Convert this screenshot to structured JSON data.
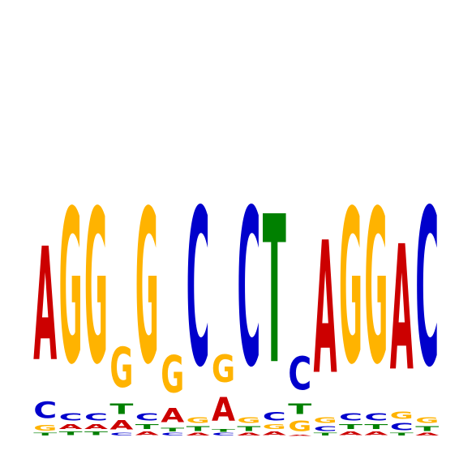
{
  "chart_data": {
    "type": "sequence-logo",
    "alphabet": [
      "A",
      "C",
      "G",
      "T"
    ],
    "colors": {
      "A": "#cc0000",
      "C": "#0000cc",
      "G": "#ffb300",
      "T": "#008000"
    },
    "ylim": [
      0,
      2
    ],
    "positions": [
      {
        "A": 0.96,
        "C": 0.14,
        "G": 0.05,
        "T": 0.02
      },
      {
        "A": 0.04,
        "C": 0.06,
        "G": 1.3,
        "T": 0.03
      },
      {
        "A": 0.04,
        "C": 0.06,
        "G": 1.3,
        "T": 0.03
      },
      {
        "A": 0.08,
        "C": 0.02,
        "G": 0.34,
        "T": 0.09
      },
      {
        "A": 0.03,
        "C": 0.06,
        "G": 1.3,
        "T": 0.04
      },
      {
        "A": 0.12,
        "C": 0.02,
        "G": 0.31,
        "T": 0.03
      },
      {
        "A": 0.02,
        "C": 1.33,
        "G": 0.05,
        "T": 0.04
      },
      {
        "A": 0.2,
        "C": 0.02,
        "G": 0.23,
        "T": 0.02
      },
      {
        "A": 0.02,
        "C": 1.33,
        "G": 0.05,
        "T": 0.04
      },
      {
        "A": 0.03,
        "C": 0.07,
        "G": 0.04,
        "T": 1.25
      },
      {
        "A": 0.01,
        "C": 0.28,
        "G": 0.09,
        "T": 0.09
      },
      {
        "A": 1.12,
        "C": 0.04,
        "G": 0.05,
        "T": 0.02
      },
      {
        "A": 0.03,
        "C": 0.06,
        "G": 1.3,
        "T": 0.04
      },
      {
        "A": 0.03,
        "C": 0.06,
        "G": 1.3,
        "T": 0.04
      },
      {
        "A": 1.06,
        "C": 0.06,
        "G": 0.06,
        "T": 0.02
      },
      {
        "A": 0.02,
        "C": 1.33,
        "G": 0.05,
        "T": 0.04
      }
    ]
  }
}
